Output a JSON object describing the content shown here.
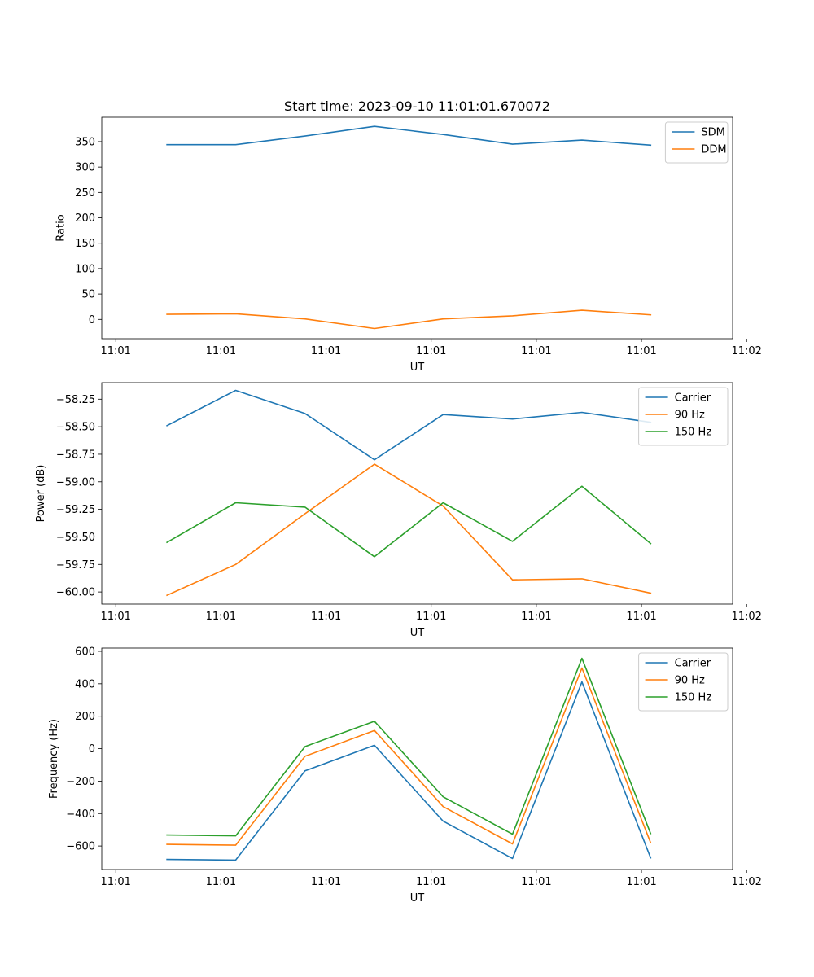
{
  "figure": {
    "title": "Start time: 2023-09-10 11:01:01.670072"
  },
  "chart_data": [
    {
      "type": "line",
      "title": "Start time: 2023-09-10 11:01:01.670072",
      "xlabel": "UT",
      "ylabel": "Ratio",
      "xlim": [
        -0.2,
        8.8
      ],
      "ylim": [
        -38,
        398
      ],
      "x_ticks": [
        0,
        1.5,
        3,
        4.5,
        6,
        7.5,
        9
      ],
      "x_tick_labels": [
        "11:01",
        "11:01",
        "11:01",
        "11:01",
        "11:01",
        "11:01",
        "11:02"
      ],
      "y_ticks": [
        0,
        50,
        100,
        150,
        200,
        250,
        300,
        350
      ],
      "y_tick_labels": [
        "0",
        "50",
        "100",
        "150",
        "200",
        "250",
        "300",
        "350"
      ],
      "legend": "top-right",
      "x": [
        0.73,
        1.71,
        2.7,
        3.69,
        4.67,
        5.66,
        6.65,
        7.63
      ],
      "series": [
        {
          "name": "SDM",
          "color": "#1f77b4",
          "values": [
            344,
            344,
            361,
            380,
            364,
            345,
            353,
            343
          ]
        },
        {
          "name": "DDM",
          "color": "#ff7f0e",
          "values": [
            10,
            11,
            1,
            -18,
            1,
            7,
            18,
            9
          ]
        }
      ]
    },
    {
      "type": "line",
      "title": "",
      "xlabel": "UT",
      "ylabel": "Power (dB)",
      "xlim": [
        -0.2,
        8.8
      ],
      "ylim": [
        -60.11,
        -58.1
      ],
      "x_ticks": [
        0,
        1.5,
        3,
        4.5,
        6,
        7.5,
        9
      ],
      "x_tick_labels": [
        "11:01",
        "11:01",
        "11:01",
        "11:01",
        "11:01",
        "11:01",
        "11:02"
      ],
      "y_ticks": [
        -60.0,
        -59.75,
        -59.5,
        -59.25,
        -59.0,
        -58.75,
        -58.5,
        -58.25
      ],
      "y_tick_labels": [
        "−60.00",
        "−59.75",
        "−59.50",
        "−59.25",
        "−59.00",
        "−58.75",
        "−58.50",
        "−58.25"
      ],
      "legend": "top-right",
      "x": [
        0.73,
        1.71,
        2.7,
        3.69,
        4.67,
        5.66,
        6.65,
        7.63
      ],
      "series": [
        {
          "name": "Carrier",
          "color": "#1f77b4",
          "values": [
            -58.49,
            -58.17,
            -58.38,
            -58.8,
            -58.39,
            -58.43,
            -58.37,
            -58.46
          ]
        },
        {
          "name": "90 Hz",
          "color": "#ff7f0e",
          "values": [
            -60.03,
            -59.75,
            -59.29,
            -58.84,
            -59.22,
            -59.89,
            -59.88,
            -60.01
          ]
        },
        {
          "name": "150 Hz",
          "color": "#2ca02c",
          "values": [
            -59.55,
            -59.19,
            -59.23,
            -59.68,
            -59.19,
            -59.54,
            -59.04,
            -59.56
          ]
        }
      ]
    },
    {
      "type": "line",
      "title": "",
      "xlabel": "UT",
      "ylabel": "Frequency (Hz)",
      "xlim": [
        -0.2,
        8.8
      ],
      "ylim": [
        -745,
        620
      ],
      "x_ticks": [
        0,
        1.5,
        3,
        4.5,
        6,
        7.5,
        9
      ],
      "x_tick_labels": [
        "11:01",
        "11:01",
        "11:01",
        "11:01",
        "11:01",
        "11:01",
        "11:02"
      ],
      "y_ticks": [
        -600,
        -400,
        -200,
        0,
        200,
        400,
        600
      ],
      "y_tick_labels": [
        "−600",
        "−400",
        "−200",
        "0",
        "200",
        "400",
        "600"
      ],
      "legend": "top-right",
      "x": [
        0.73,
        1.71,
        2.7,
        3.69,
        4.67,
        5.66,
        6.65,
        7.63
      ],
      "series": [
        {
          "name": "Carrier",
          "color": "#1f77b4",
          "values": [
            -683,
            -687,
            -137,
            21,
            -447,
            -677,
            411,
            -673
          ]
        },
        {
          "name": "90 Hz",
          "color": "#ff7f0e",
          "values": [
            -590,
            -595,
            -47,
            112,
            -357,
            -587,
            497,
            -580
          ]
        },
        {
          "name": "150 Hz",
          "color": "#2ca02c",
          "values": [
            -532,
            -537,
            13,
            169,
            -297,
            -527,
            557,
            -523
          ]
        }
      ]
    }
  ]
}
